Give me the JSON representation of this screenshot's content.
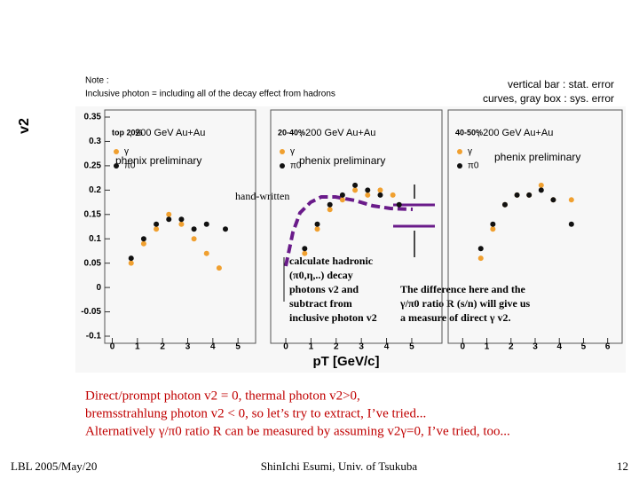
{
  "slide": {
    "note": [
      "Note :",
      "Inclusive photon = including all of the decay effect from hadrons"
    ],
    "error_note": [
      "vertical bar : stat. error",
      "curves, gray box : sys. error"
    ],
    "y_axis_label": "v2",
    "x_axis_label": "pT [GeV/c]",
    "handwritten_label": "hand-written",
    "hadronic_note": [
      "calculate hadronic",
      "(π0,η,..) decay",
      "photons v2 and",
      "subtract from",
      "inclusive photon v2"
    ],
    "difference_note": [
      "The difference here and the",
      "γ/π0 ratio R (s/n) will give us",
      "a measure of direct γ v2."
    ],
    "body": [
      "Direct/prompt photon v2 = 0, thermal photon v2>0,",
      "bremsstrahlung photon v2 < 0, so let’s try to extract, I’ve tried...",
      "Alternatively γ/π0 ratio R can be measured by assuming v2γ=0, I’ve tried, too..."
    ],
    "footer": {
      "left": "LBL 2005/May/20",
      "center": "ShinIchi Esumi, Univ. of Tsukuba",
      "right": "12"
    }
  },
  "chart_data": [
    {
      "type": "scatter",
      "title": "top 20%",
      "subtitle": ", 200 GeV Au+Au",
      "annotation": "phenix preliminary",
      "xlim": [
        -0.3,
        5.7
      ],
      "xticks": [
        0,
        1,
        2,
        3,
        4,
        5
      ],
      "ylim": [
        -0.1,
        0.35
      ],
      "yticks": [
        -0.1,
        -0.05,
        0,
        0.05,
        0.1,
        0.15,
        0.2,
        0.25,
        0.3,
        0.35
      ],
      "series": [
        {
          "name": "γ",
          "color": "#f0a030",
          "x": [
            0.75,
            1.25,
            1.75,
            2.25,
            2.75,
            3.25,
            3.75,
            4.25
          ],
          "values": [
            0.05,
            0.09,
            0.12,
            0.15,
            0.13,
            0.1,
            0.07,
            0.04
          ]
        },
        {
          "name": "π0",
          "color": "#111111",
          "x": [
            0.75,
            1.25,
            1.75,
            2.25,
            2.75,
            3.25,
            3.75,
            4.5
          ],
          "values": [
            0.06,
            0.1,
            0.13,
            0.14,
            0.14,
            0.12,
            0.13,
            0.12
          ]
        }
      ]
    },
    {
      "type": "scatter",
      "title": "20-40%",
      "subtitle": ", 200 GeV Au+Au",
      "annotation": "phenix preliminary",
      "xlim": [
        -0.6,
        6.2
      ],
      "xticks": [
        0,
        1,
        2,
        3,
        4,
        5
      ],
      "ylim": [
        -0.1,
        0.35
      ],
      "series": [
        {
          "name": "γ",
          "color": "#f0a030",
          "x": [
            0.75,
            1.25,
            1.75,
            2.25,
            2.75,
            3.25,
            3.75,
            4.25
          ],
          "values": [
            0.07,
            0.12,
            0.16,
            0.18,
            0.2,
            0.19,
            0.2,
            0.19
          ]
        },
        {
          "name": "π0",
          "color": "#111111",
          "x": [
            0.75,
            1.25,
            1.75,
            2.25,
            2.75,
            3.25,
            3.75,
            4.5
          ],
          "values": [
            0.08,
            0.13,
            0.17,
            0.19,
            0.21,
            0.2,
            0.19,
            0.17
          ]
        }
      ]
    },
    {
      "type": "scatter",
      "title": "40-50%",
      "subtitle": ", 200 GeV Au+Au",
      "annotation": "phenix preliminary",
      "xlim": [
        -0.6,
        6.6
      ],
      "xticks": [
        0,
        1,
        2,
        3,
        4,
        5,
        6
      ],
      "ylim": [
        -0.1,
        0.35
      ],
      "series": [
        {
          "name": "γ",
          "color": "#f0a030",
          "x": [
            0.75,
            1.25,
            1.75,
            2.25,
            2.75,
            3.25,
            3.75,
            4.5
          ],
          "values": [
            0.06,
            0.12,
            0.17,
            0.19,
            0.19,
            0.21,
            0.18,
            0.18
          ]
        },
        {
          "name": "π0",
          "color": "#111111",
          "x": [
            0.75,
            1.25,
            1.75,
            2.25,
            2.75,
            3.25,
            3.75,
            4.5
          ],
          "values": [
            0.08,
            0.13,
            0.17,
            0.19,
            0.19,
            0.2,
            0.18,
            0.13
          ]
        }
      ]
    }
  ]
}
